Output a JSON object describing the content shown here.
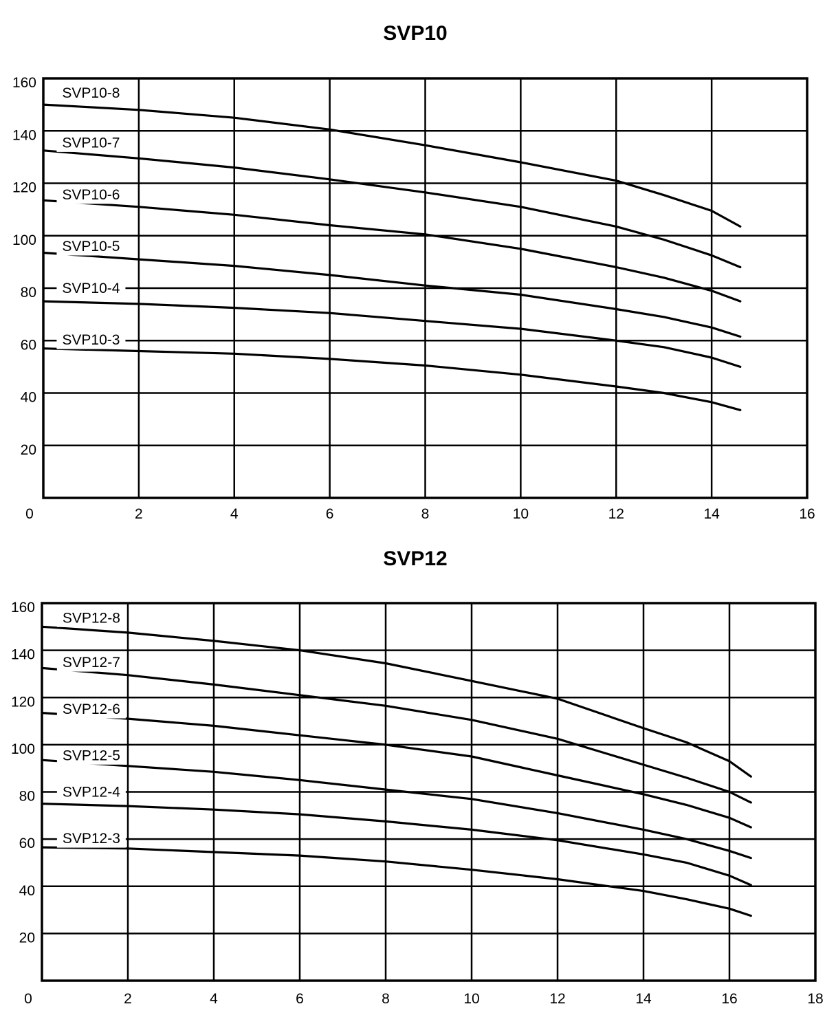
{
  "page": {
    "background_color": "#ffffff",
    "ink_color": "#000000"
  },
  "chart_data": [
    {
      "type": "line",
      "title": "SVP10",
      "xlabel": "",
      "ylabel": "",
      "xlim": [
        0,
        16
      ],
      "ylim": [
        0,
        160
      ],
      "x_ticks": [
        0,
        2,
        4,
        6,
        8,
        10,
        12,
        14,
        16
      ],
      "y_ticks": [
        20,
        40,
        60,
        80,
        100,
        120,
        140,
        160
      ],
      "grid": "on",
      "legend": "inline-labels",
      "series": [
        {
          "name": "SVP10-8",
          "label_anchor": {
            "x": 1.0,
            "y": 154.5
          },
          "points": [
            [
              0,
              150
            ],
            [
              2,
              148
            ],
            [
              4,
              145
            ],
            [
              6,
              140.5
            ],
            [
              8,
              134.5
            ],
            [
              10,
              128
            ],
            [
              12,
              121
            ],
            [
              13,
              115.5
            ],
            [
              14,
              109.5
            ],
            [
              14.6,
              103.5
            ]
          ]
        },
        {
          "name": "SVP10-7",
          "label_anchor": {
            "x": 1.0,
            "y": 135.5
          },
          "points": [
            [
              0,
              132.5
            ],
            [
              2,
              129.5
            ],
            [
              4,
              126
            ],
            [
              6,
              121.5
            ],
            [
              8,
              116.5
            ],
            [
              10,
              111
            ],
            [
              12,
              103.5
            ],
            [
              13,
              98.5
            ],
            [
              14,
              92.5
            ],
            [
              14.6,
              88
            ]
          ]
        },
        {
          "name": "SVP10-6",
          "label_anchor": {
            "x": 1.0,
            "y": 115.7
          },
          "points": [
            [
              0,
              113.5
            ],
            [
              2,
              111
            ],
            [
              4,
              108
            ],
            [
              6,
              104
            ],
            [
              8,
              100.5
            ],
            [
              10,
              95
            ],
            [
              12,
              88
            ],
            [
              13,
              84
            ],
            [
              14,
              79
            ],
            [
              14.6,
              75
            ]
          ]
        },
        {
          "name": "SVP10-5",
          "label_anchor": {
            "x": 1.0,
            "y": 96.0
          },
          "points": [
            [
              0,
              93.5
            ],
            [
              2,
              91
            ],
            [
              4,
              88.5
            ],
            [
              6,
              85
            ],
            [
              8,
              81
            ],
            [
              10,
              77.5
            ],
            [
              12,
              72
            ],
            [
              13,
              69
            ],
            [
              14,
              65
            ],
            [
              14.6,
              61.5
            ]
          ]
        },
        {
          "name": "SVP10-4",
          "label_anchor": {
            "x": 1.0,
            "y": 80.0
          },
          "points": [
            [
              0,
              75
            ],
            [
              2,
              74
            ],
            [
              4,
              72.5
            ],
            [
              6,
              70.5
            ],
            [
              8,
              67.5
            ],
            [
              10,
              64.5
            ],
            [
              12,
              60
            ],
            [
              13,
              57.5
            ],
            [
              14,
              53.5
            ],
            [
              14.6,
              50
            ]
          ]
        },
        {
          "name": "SVP10-3",
          "label_anchor": {
            "x": 1.0,
            "y": 60.3
          },
          "points": [
            [
              0,
              57
            ],
            [
              2,
              56
            ],
            [
              4,
              55
            ],
            [
              6,
              53
            ],
            [
              8,
              50.5
            ],
            [
              10,
              47
            ],
            [
              12,
              42.5
            ],
            [
              13,
              40
            ],
            [
              14,
              36.5
            ],
            [
              14.6,
              33.5
            ]
          ]
        }
      ]
    },
    {
      "type": "line",
      "title": "SVP12",
      "xlabel": "",
      "ylabel": "",
      "xlim": [
        0,
        18
      ],
      "ylim": [
        0,
        160
      ],
      "x_ticks": [
        0,
        2,
        4,
        6,
        8,
        10,
        12,
        14,
        16,
        18
      ],
      "y_ticks": [
        20,
        40,
        60,
        80,
        100,
        120,
        140,
        160
      ],
      "grid": "on",
      "legend": "inline-labels",
      "series": [
        {
          "name": "SVP12-8",
          "label_anchor": {
            "x": 1.15,
            "y": 153.8
          },
          "points": [
            [
              0,
              150
            ],
            [
              2,
              147.5
            ],
            [
              4,
              144
            ],
            [
              6,
              140
            ],
            [
              8,
              134.5
            ],
            [
              10,
              127
            ],
            [
              12,
              119.5
            ],
            [
              14,
              107
            ],
            [
              15,
              101
            ],
            [
              16,
              93
            ],
            [
              16.5,
              86.5
            ]
          ]
        },
        {
          "name": "SVP12-7",
          "label_anchor": {
            "x": 1.15,
            "y": 134.9
          },
          "points": [
            [
              0,
              132.5
            ],
            [
              2,
              129.5
            ],
            [
              4,
              125.5
            ],
            [
              6,
              121
            ],
            [
              8,
              116.5
            ],
            [
              10,
              110.5
            ],
            [
              12,
              102.5
            ],
            [
              14,
              91.5
            ],
            [
              15,
              86
            ],
            [
              16,
              80
            ],
            [
              16.5,
              75.5
            ]
          ]
        },
        {
          "name": "SVP12-6",
          "label_anchor": {
            "x": 1.15,
            "y": 115.1
          },
          "points": [
            [
              0,
              113.5
            ],
            [
              2,
              111
            ],
            [
              4,
              108
            ],
            [
              6,
              104
            ],
            [
              8,
              100
            ],
            [
              10,
              95
            ],
            [
              12,
              87
            ],
            [
              14,
              79
            ],
            [
              15,
              74.5
            ],
            [
              16,
              69
            ],
            [
              16.5,
              65
            ]
          ]
        },
        {
          "name": "SVP12-5",
          "label_anchor": {
            "x": 1.15,
            "y": 95.5
          },
          "points": [
            [
              0,
              93.5
            ],
            [
              2,
              91
            ],
            [
              4,
              88.5
            ],
            [
              6,
              85
            ],
            [
              8,
              81
            ],
            [
              10,
              77
            ],
            [
              12,
              71
            ],
            [
              14,
              64
            ],
            [
              15,
              60
            ],
            [
              16,
              55
            ],
            [
              16.5,
              52
            ]
          ]
        },
        {
          "name": "SVP12-4",
          "label_anchor": {
            "x": 1.15,
            "y": 80.0
          },
          "points": [
            [
              0,
              75
            ],
            [
              2,
              74
            ],
            [
              4,
              72.5
            ],
            [
              6,
              70.5
            ],
            [
              8,
              67.5
            ],
            [
              10,
              64
            ],
            [
              12,
              59.5
            ],
            [
              14,
              53.5
            ],
            [
              15,
              50
            ],
            [
              16,
              44.5
            ],
            [
              16.5,
              40.5
            ]
          ]
        },
        {
          "name": "SVP12-3",
          "label_anchor": {
            "x": 1.15,
            "y": 60.3
          },
          "points": [
            [
              0,
              56.5
            ],
            [
              2,
              56
            ],
            [
              4,
              54.5
            ],
            [
              6,
              53
            ],
            [
              8,
              50.5
            ],
            [
              10,
              47
            ],
            [
              12,
              43
            ],
            [
              14,
              38
            ],
            [
              15,
              34.5
            ],
            [
              16,
              30.5
            ],
            [
              16.5,
              27.5
            ]
          ]
        }
      ]
    }
  ]
}
